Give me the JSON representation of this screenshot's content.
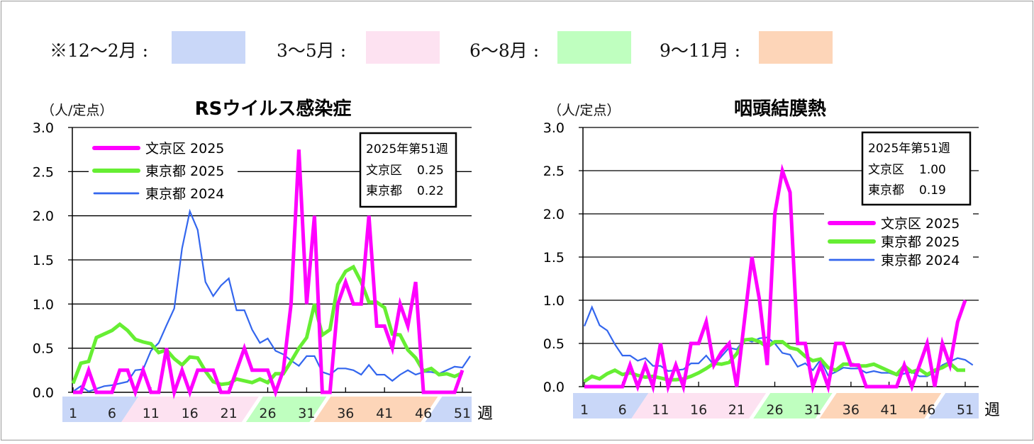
{
  "season_legend": {
    "items": [
      {
        "label": "※12～2月 :",
        "color": "#c9d7f8"
      },
      {
        "label": "3～5月 :",
        "color": "#fde2f1"
      },
      {
        "label": "6～8月 :",
        "color": "#bfffbf"
      },
      {
        "label": "9～11月 :",
        "color": "#fdd5b8"
      }
    ]
  },
  "colors": {
    "bunkyo_2025": "#ff00ff",
    "tokyo_2025": "#66ee33",
    "tokyo_2024": "#3366ee"
  },
  "chart_data": [
    {
      "type": "line",
      "title": "RSウイルス感染症",
      "ylabel": "（人/定点）",
      "xlabel": "週",
      "ylim": [
        0,
        3.0
      ],
      "yticks": [
        "0.0",
        "0.5",
        "1.0",
        "1.5",
        "2.0",
        "2.5",
        "3.0"
      ],
      "xticks": [
        "1",
        "6",
        "11",
        "16",
        "21",
        "26",
        "31",
        "36",
        "41",
        "46",
        "51"
      ],
      "grid": true,
      "legend_placement": "top-left",
      "info_box": {
        "title": "2025年第51週",
        "rows": [
          {
            "label": "文京区",
            "value": "0.25"
          },
          {
            "label": "東京都",
            "value": "0.22"
          }
        ]
      },
      "series": [
        {
          "name": "文京区 2025",
          "values": [
            0,
            0,
            0.25,
            0,
            0,
            0,
            0.25,
            0.25,
            0,
            0.25,
            0,
            0,
            0.5,
            0,
            0.25,
            0,
            0.25,
            0.25,
            0.25,
            0,
            0,
            0.25,
            0.5,
            0.25,
            0.25,
            0.25,
            0,
            0.25,
            1.0,
            2.75,
            1.0,
            2.0,
            0,
            0,
            1.0,
            1.25,
            1.0,
            1.0,
            2.0,
            0.75,
            0.75,
            0.5,
            1.0,
            0.75,
            1.25,
            0,
            0,
            0,
            0,
            0,
            0.25
          ]
        },
        {
          "name": "東京都 2025",
          "values": [
            0.1,
            0.33,
            0.35,
            0.62,
            0.66,
            0.7,
            0.77,
            0.7,
            0.6,
            0.57,
            0.55,
            0.45,
            0.48,
            0.38,
            0.31,
            0.4,
            0.39,
            0.24,
            0.12,
            0.09,
            0.1,
            0.15,
            0.13,
            0.11,
            0.15,
            0.11,
            0.21,
            0.21,
            0.35,
            0.5,
            0.62,
            1.0,
            0.65,
            0.71,
            1.22,
            1.37,
            1.42,
            1.25,
            1.02,
            1.02,
            0.96,
            0.66,
            0.65,
            0.48,
            0.39,
            0.24,
            0.27,
            0.2,
            0.21,
            0.18,
            0.22
          ]
        },
        {
          "name": "東京都 2024",
          "values": [
            0.01,
            0.07,
            0.01,
            0.04,
            0.07,
            0.08,
            0.1,
            0.12,
            0.25,
            0.26,
            0.47,
            0.56,
            0.76,
            0.95,
            1.63,
            2.05,
            1.84,
            1.25,
            1.09,
            1.21,
            1.29,
            0.93,
            0.93,
            0.71,
            0.56,
            0.61,
            0.47,
            0.43,
            0.36,
            0.3,
            0.41,
            0.41,
            0.23,
            0.2,
            0.27,
            0.27,
            0.25,
            0.2,
            0.31,
            0.2,
            0.2,
            0.13,
            0.2,
            0.25,
            0.2,
            0.23,
            0.23,
            0.21,
            0.25,
            0.29,
            0.28,
            0.41
          ]
        }
      ]
    },
    {
      "type": "line",
      "title": "咽頭結膜熱",
      "ylabel": "（人/定点）",
      "xlabel": "週",
      "ylim": [
        0,
        3.0
      ],
      "yticks": [
        "0.0",
        "0.5",
        "1.0",
        "1.5",
        "2.0",
        "2.5",
        "3.0"
      ],
      "xticks": [
        "1",
        "6",
        "11",
        "16",
        "21",
        "26",
        "31",
        "36",
        "41",
        "46",
        "51"
      ],
      "grid": true,
      "legend_placement": "right",
      "info_box": {
        "title": "2025年第51週",
        "rows": [
          {
            "label": "文京区",
            "value": "1.00"
          },
          {
            "label": "東京都",
            "value": "0.19"
          }
        ]
      },
      "series": [
        {
          "name": "文京区 2025",
          "values": [
            0,
            0,
            0,
            0,
            0,
            0,
            0.25,
            0,
            0.25,
            0,
            0.5,
            0,
            0.25,
            0,
            0.5,
            0.5,
            0.75,
            0.25,
            0.4,
            0.5,
            0,
            0.75,
            1.5,
            1.0,
            0.25,
            2.0,
            2.5,
            2.25,
            0.5,
            0.5,
            0,
            0.25,
            0,
            0.5,
            0.5,
            0.25,
            0.25,
            0,
            0,
            0,
            0,
            0,
            0.25,
            0,
            0.25,
            0.5,
            0,
            0.5,
            0.25,
            0.75,
            1.0
          ]
        },
        {
          "name": "東京都 2025",
          "values": [
            0.06,
            0.12,
            0.09,
            0.15,
            0.19,
            0.14,
            0.16,
            0.13,
            0.11,
            0.12,
            0.1,
            0.08,
            0.08,
            0.09,
            0.12,
            0.16,
            0.21,
            0.27,
            0.26,
            0.28,
            0.38,
            0.54,
            0.55,
            0.52,
            0.46,
            0.52,
            0.52,
            0.45,
            0.43,
            0.35,
            0.3,
            0.32,
            0.22,
            0.19,
            0.26,
            0.26,
            0.24,
            0.24,
            0.26,
            0.22,
            0.18,
            0.14,
            0.24,
            0.17,
            0.2,
            0.14,
            0.19,
            0.22,
            0.27,
            0.19,
            0.19
          ]
        },
        {
          "name": "東京都 2024",
          "values": [
            0.7,
            0.92,
            0.71,
            0.65,
            0.49,
            0.36,
            0.36,
            0.3,
            0.33,
            0.24,
            0.24,
            0.18,
            0.19,
            0.2,
            0.27,
            0.27,
            0.36,
            0.25,
            0.35,
            0.45,
            0.43,
            0.55,
            0.52,
            0.56,
            0.57,
            0.5,
            0.39,
            0.37,
            0.23,
            0.27,
            0.19,
            0.31,
            0.13,
            0.17,
            0.22,
            0.21,
            0.21,
            0.16,
            0.18,
            0.16,
            0.16,
            0.13,
            0.15,
            0.17,
            0.12,
            0.12,
            0.17,
            0.25,
            0.29,
            0.33,
            0.31,
            0.25
          ]
        }
      ]
    }
  ]
}
